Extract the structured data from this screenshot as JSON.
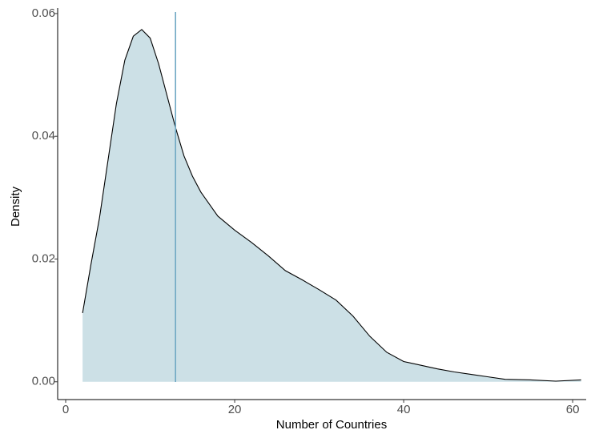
{
  "chart_data": {
    "type": "density",
    "x_label": "Number of Countries",
    "y_label": "Density",
    "x": [
      2,
      3,
      4,
      5,
      6,
      7,
      8,
      9,
      10,
      11,
      12,
      13,
      14,
      15,
      16,
      18,
      20,
      22,
      24,
      26,
      28,
      30,
      32,
      34,
      36,
      38,
      40,
      42,
      44,
      46,
      48,
      50,
      52,
      55,
      58,
      61
    ],
    "values": [
      0.0112,
      0.0192,
      0.0267,
      0.036,
      0.0453,
      0.0524,
      0.0563,
      0.0574,
      0.056,
      0.0518,
      0.0466,
      0.0414,
      0.0368,
      0.0335,
      0.0309,
      0.027,
      0.0247,
      0.0227,
      0.0205,
      0.0181,
      0.0166,
      0.015,
      0.0133,
      0.0107,
      0.0074,
      0.0048,
      0.0033,
      0.0027,
      0.0021,
      0.0016,
      0.0012,
      0.0008,
      0.0004,
      0.0003,
      0.0001,
      0.0003
    ],
    "fill": "#cce0e6",
    "line_color": "#000000",
    "vline": 13,
    "vline_color": "#6fa8c4",
    "xlim": [
      -0.95,
      61.6
    ],
    "ylim": [
      -0.0029,
      0.0609
    ],
    "xticks": [
      0,
      20,
      40,
      60
    ],
    "yticks": [
      {
        "value": 0,
        "label": "0.00"
      },
      {
        "value": 0.02,
        "label": "0.02"
      },
      {
        "value": 0.04,
        "label": "0.04"
      },
      {
        "value": 0.06,
        "label": "0.06"
      }
    ],
    "grid": false
  }
}
